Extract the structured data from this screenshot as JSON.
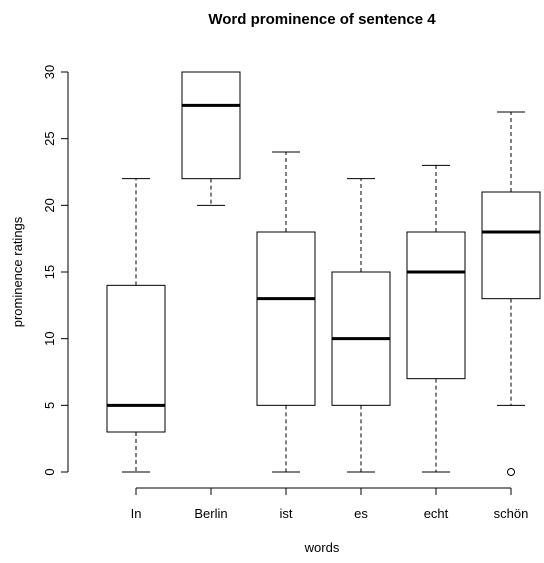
{
  "chart_data": {
    "type": "boxplot",
    "title": "Word prominence of sentence 4",
    "xlabel": "words",
    "ylabel": "prominence ratings",
    "categories": [
      "In",
      "Berlin",
      "ist",
      "es",
      "echt",
      "schön"
    ],
    "boxes": [
      {
        "name": "In",
        "whisker_low": 0,
        "q1": 3,
        "median": 5,
        "q3": 14,
        "whisker_high": 22,
        "outliers": []
      },
      {
        "name": "Berlin",
        "whisker_low": 20,
        "q1": 22,
        "median": 27.5,
        "q3": 30,
        "whisker_high": 30,
        "outliers": []
      },
      {
        "name": "ist",
        "whisker_low": 0,
        "q1": 5,
        "median": 13,
        "q3": 18,
        "whisker_high": 24,
        "outliers": []
      },
      {
        "name": "es",
        "whisker_low": 0,
        "q1": 5,
        "median": 10,
        "q3": 15,
        "whisker_high": 22,
        "outliers": []
      },
      {
        "name": "echt",
        "whisker_low": 0,
        "q1": 7,
        "median": 15,
        "q3": 18,
        "whisker_high": 23,
        "outliers": []
      },
      {
        "name": "schön",
        "whisker_low": 5,
        "q1": 13,
        "median": 18,
        "q3": 21,
        "whisker_high": 27,
        "outliers": [
          0
        ]
      }
    ],
    "yticks": [
      0,
      5,
      10,
      15,
      20,
      25,
      30
    ],
    "ylim": [
      0,
      30
    ],
    "grid": false,
    "legend": "none"
  }
}
